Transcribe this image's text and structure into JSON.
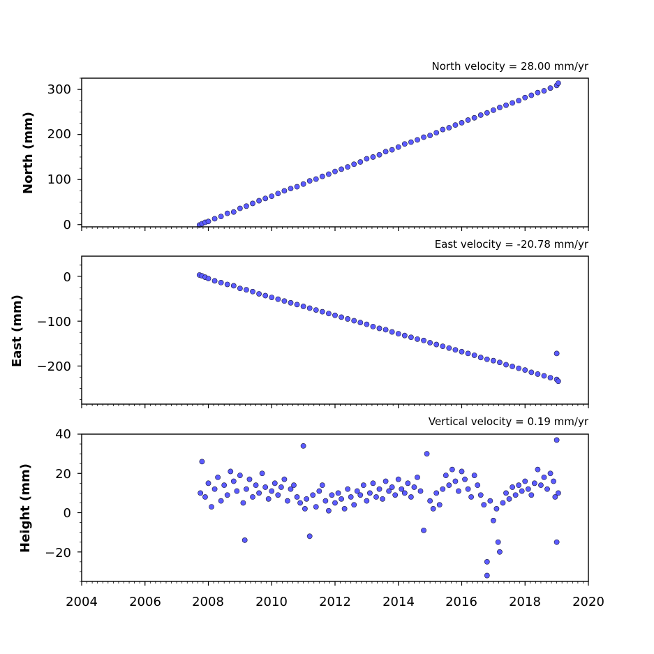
{
  "chart_data": [
    {
      "type": "scatter",
      "title": "North velocity = 28.00 mm/yr",
      "xlabel": "",
      "ylabel": "North (mm)",
      "xlim": [
        2004,
        2020
      ],
      "ylim": [
        -5,
        325
      ],
      "yticks": [
        0,
        100,
        200,
        300
      ],
      "ytick_labels": [
        "0",
        "100",
        "200",
        "300"
      ],
      "xticks": [
        2004,
        2006,
        2008,
        2010,
        2012,
        2014,
        2016,
        2018,
        2020
      ],
      "xtick_labels": [],
      "marker_color": "#5b5bff",
      "marker_edge": "#1a1a3a",
      "series": [
        {
          "x": [
            2007.72,
            2007.8,
            2007.9,
            2008.0,
            2008.2,
            2008.4,
            2008.6,
            2008.8,
            2009.0,
            2009.2,
            2009.4,
            2009.6,
            2009.8,
            2010.0,
            2010.2,
            2010.4,
            2010.6,
            2010.8,
            2011.0,
            2011.2,
            2011.4,
            2011.6,
            2011.8,
            2012.0,
            2012.2,
            2012.4,
            2012.6,
            2012.8,
            2013.0,
            2013.2,
            2013.4,
            2013.6,
            2013.8,
            2014.0,
            2014.2,
            2014.4,
            2014.6,
            2014.8,
            2015.0,
            2015.2,
            2015.4,
            2015.6,
            2015.8,
            2016.0,
            2016.2,
            2016.4,
            2016.6,
            2016.8,
            2017.0,
            2017.2,
            2017.4,
            2017.6,
            2017.8,
            2018.0,
            2018.2,
            2018.4,
            2018.6,
            2018.8,
            2019.0,
            2019.05
          ],
          "y": [
            -1,
            2,
            5,
            7,
            13,
            18,
            25,
            28,
            36,
            41,
            47,
            53,
            58,
            63,
            69,
            75,
            80,
            84,
            90,
            97,
            101,
            107,
            112,
            118,
            123,
            128,
            134,
            139,
            146,
            150,
            155,
            162,
            166,
            172,
            179,
            183,
            188,
            194,
            198,
            204,
            211,
            215,
            221,
            226,
            232,
            237,
            243,
            248,
            254,
            260,
            265,
            270,
            275,
            282,
            287,
            293,
            297,
            303,
            309,
            314
          ]
        }
      ]
    },
    {
      "type": "scatter",
      "title": "East velocity = -20.78 mm/yr",
      "xlabel": "",
      "ylabel": "East (mm)",
      "xlim": [
        2004,
        2020
      ],
      "ylim": [
        -285,
        45
      ],
      "yticks": [
        0,
        -100,
        -200
      ],
      "ytick_labels": [
        "0",
        "−100",
        "−200"
      ],
      "xticks": [
        2004,
        2006,
        2008,
        2010,
        2012,
        2014,
        2016,
        2018,
        2020
      ],
      "xtick_labels": [],
      "marker_color": "#5b5bff",
      "marker_edge": "#1a1a3a",
      "series": [
        {
          "x": [
            2007.72,
            2007.8,
            2007.9,
            2008.0,
            2008.2,
            2008.4,
            2008.6,
            2008.8,
            2009.0,
            2009.2,
            2009.4,
            2009.6,
            2009.8,
            2010.0,
            2010.2,
            2010.4,
            2010.6,
            2010.8,
            2011.0,
            2011.2,
            2011.4,
            2011.6,
            2011.8,
            2012.0,
            2012.2,
            2012.4,
            2012.6,
            2012.8,
            2013.0,
            2013.2,
            2013.4,
            2013.6,
            2013.8,
            2014.0,
            2014.2,
            2014.4,
            2014.6,
            2014.8,
            2015.0,
            2015.2,
            2015.4,
            2015.6,
            2015.8,
            2016.0,
            2016.2,
            2016.4,
            2016.6,
            2016.8,
            2017.0,
            2017.2,
            2017.4,
            2017.6,
            2017.8,
            2018.0,
            2018.2,
            2018.4,
            2018.6,
            2018.8,
            2019.0,
            2019.0,
            2019.05
          ],
          "y": [
            3,
            1,
            -2,
            -5,
            -10,
            -14,
            -18,
            -21,
            -27,
            -30,
            -34,
            -39,
            -43,
            -47,
            -51,
            -55,
            -59,
            -63,
            -67,
            -71,
            -75,
            -79,
            -83,
            -87,
            -91,
            -95,
            -99,
            -103,
            -107,
            -112,
            -116,
            -119,
            -124,
            -128,
            -132,
            -136,
            -140,
            -143,
            -148,
            -152,
            -156,
            -160,
            -164,
            -168,
            -172,
            -176,
            -181,
            -185,
            -188,
            -192,
            -197,
            -201,
            -205,
            -209,
            -214,
            -218,
            -222,
            -226,
            -230,
            -172,
            -234
          ]
        }
      ]
    },
    {
      "type": "scatter",
      "title": "Vertical velocity = 0.19 mm/yr",
      "xlabel": "",
      "ylabel": "Height (mm)",
      "xlim": [
        2004,
        2020
      ],
      "ylim": [
        -35,
        40
      ],
      "yticks": [
        40,
        20,
        0,
        -20
      ],
      "ytick_labels": [
        "40",
        "20",
        "0",
        "−20"
      ],
      "xticks": [
        2004,
        2006,
        2008,
        2010,
        2012,
        2014,
        2016,
        2018,
        2020
      ],
      "xtick_labels": [
        "2004",
        "2006",
        "2008",
        "2010",
        "2012",
        "2014",
        "2016",
        "2018",
        "2020"
      ],
      "marker_color": "#5b5bff",
      "marker_edge": "#1a1a3a",
      "series": [
        {
          "x": [
            2007.75,
            2007.8,
            2007.9,
            2008.0,
            2008.1,
            2008.2,
            2008.3,
            2008.4,
            2008.5,
            2008.6,
            2008.7,
            2008.8,
            2008.9,
            2009.0,
            2009.1,
            2009.15,
            2009.2,
            2009.3,
            2009.4,
            2009.5,
            2009.6,
            2009.7,
            2009.8,
            2009.9,
            2010.0,
            2010.1,
            2010.2,
            2010.3,
            2010.4,
            2010.5,
            2010.6,
            2010.7,
            2010.8,
            2010.9,
            2011.0,
            2011.05,
            2011.1,
            2011.2,
            2011.3,
            2011.4,
            2011.5,
            2011.6,
            2011.7,
            2011.8,
            2011.9,
            2012.0,
            2012.1,
            2012.2,
            2012.3,
            2012.4,
            2012.5,
            2012.6,
            2012.7,
            2012.8,
            2012.9,
            2013.0,
            2013.1,
            2013.2,
            2013.3,
            2013.4,
            2013.5,
            2013.6,
            2013.7,
            2013.8,
            2013.9,
            2014.0,
            2014.1,
            2014.2,
            2014.3,
            2014.4,
            2014.5,
            2014.6,
            2014.7,
            2014.8,
            2014.9,
            2015.0,
            2015.1,
            2015.2,
            2015.3,
            2015.4,
            2015.5,
            2015.6,
            2015.7,
            2015.8,
            2015.9,
            2016.0,
            2016.1,
            2016.2,
            2016.3,
            2016.4,
            2016.5,
            2016.6,
            2016.7,
            2016.8,
            2016.8,
            2016.9,
            2017.0,
            2017.1,
            2017.15,
            2017.2,
            2017.3,
            2017.4,
            2017.5,
            2017.6,
            2017.7,
            2017.8,
            2017.9,
            2018.0,
            2018.1,
            2018.2,
            2018.3,
            2018.4,
            2018.5,
            2018.6,
            2018.7,
            2018.8,
            2018.9,
            2018.95,
            2019.0,
            2019.0,
            2019.05
          ],
          "y": [
            10,
            26,
            8,
            15,
            3,
            12,
            18,
            6,
            14,
            9,
            21,
            16,
            11,
            19,
            5,
            -14,
            12,
            17,
            8,
            14,
            10,
            20,
            13,
            7,
            11,
            15,
            9,
            13,
            17,
            6,
            12,
            14,
            8,
            5,
            34,
            2,
            7,
            -12,
            9,
            3,
            11,
            14,
            6,
            1,
            9,
            5,
            10,
            7,
            2,
            12,
            8,
            4,
            11,
            9,
            14,
            6,
            10,
            15,
            8,
            12,
            7,
            16,
            11,
            13,
            9,
            17,
            12,
            10,
            15,
            8,
            13,
            18,
            11,
            -9,
            30,
            6,
            2,
            10,
            4,
            12,
            19,
            14,
            22,
            16,
            11,
            21,
            17,
            12,
            8,
            19,
            14,
            9,
            4,
            -25,
            -32,
            6,
            -4,
            2,
            -15,
            -20,
            5,
            10,
            7,
            13,
            9,
            14,
            11,
            16,
            12,
            9,
            15,
            22,
            14,
            18,
            12,
            20,
            16,
            8,
            37,
            -15,
            10
          ]
        }
      ]
    }
  ]
}
